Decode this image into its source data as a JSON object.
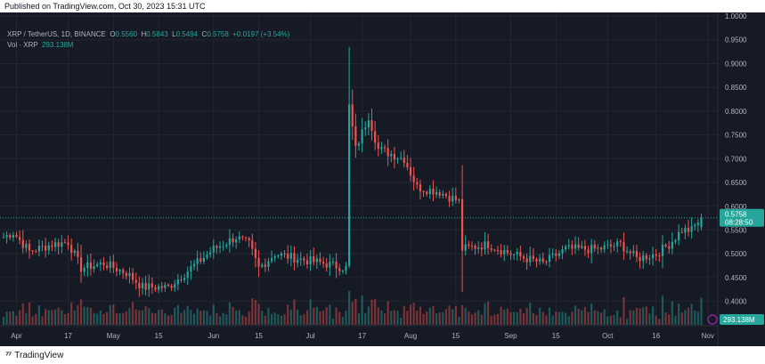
{
  "header": {
    "published": "Published on TradingView.com, Oct 30, 2023 15:31 UTC"
  },
  "legend": {
    "symbol": "XRP / TetherUS, 1D, BINANCE",
    "o_label": "O",
    "o": "0.5560",
    "h_label": "H",
    "h": "0.5843",
    "l_label": "L",
    "l": "0.5494",
    "c_label": "C",
    "c": "0.5758",
    "change": "+0.0197 (+3.54%)"
  },
  "volume_legend": {
    "label": "Vol · XRP",
    "value": "293.138M"
  },
  "price_badge": {
    "price": "0.5758",
    "countdown": "08:28:50"
  },
  "volume_badge": "293.138M",
  "footer": {
    "logo_text": "TradingView"
  },
  "colors": {
    "up": "#26a69a",
    "down": "#ef5350",
    "background": "#161a25",
    "grid": "#232632",
    "text": "#b2b5be"
  },
  "chart_data": {
    "type": "candlestick",
    "y_ticks": [
      "1.0000",
      "0.9500",
      "0.9000",
      "0.8500",
      "0.8000",
      "0.7500",
      "0.7000",
      "0.6500",
      "0.6000",
      "0.5500",
      "0.5000",
      "0.4500",
      "0.4000"
    ],
    "ylim": [
      0.39,
      1.0
    ],
    "x_ticks": [
      {
        "label": "Apr",
        "date": "2023-04-01"
      },
      {
        "label": "17",
        "date": "2023-04-17"
      },
      {
        "label": "May",
        "date": "2023-05-01"
      },
      {
        "label": "15",
        "date": "2023-05-15"
      },
      {
        "label": "Jun",
        "date": "2023-06-01"
      },
      {
        "label": "15",
        "date": "2023-06-15"
      },
      {
        "label": "Jul",
        "date": "2023-07-01"
      },
      {
        "label": "17",
        "date": "2023-07-17"
      },
      {
        "label": "Aug",
        "date": "2023-08-01"
      },
      {
        "label": "15",
        "date": "2023-08-15"
      },
      {
        "label": "Sep",
        "date": "2023-09-01"
      },
      {
        "label": "15",
        "date": "2023-09-15"
      },
      {
        "label": "Oct",
        "date": "2023-10-01"
      },
      {
        "label": "16",
        "date": "2023-10-16"
      },
      {
        "label": "Nov",
        "date": "2023-11-01"
      }
    ],
    "xlim": [
      "2023-03-28",
      "2023-11-03"
    ],
    "close_path": [
      {
        "date": "2023-03-28",
        "close": 0.535
      },
      {
        "date": "2023-03-31",
        "close": 0.545
      },
      {
        "date": "2023-04-05",
        "close": 0.505
      },
      {
        "date": "2023-04-12",
        "close": 0.52
      },
      {
        "date": "2023-04-17",
        "close": 0.525
      },
      {
        "date": "2023-04-21",
        "close": 0.47
      },
      {
        "date": "2023-04-28",
        "close": 0.48
      },
      {
        "date": "2023-05-05",
        "close": 0.46
      },
      {
        "date": "2023-05-10",
        "close": 0.43
      },
      {
        "date": "2023-05-18",
        "close": 0.43
      },
      {
        "date": "2023-05-25",
        "close": 0.47
      },
      {
        "date": "2023-06-01",
        "close": 0.51
      },
      {
        "date": "2023-06-08",
        "close": 0.535
      },
      {
        "date": "2023-06-12",
        "close": 0.52
      },
      {
        "date": "2023-06-15",
        "close": 0.47
      },
      {
        "date": "2023-06-20",
        "close": 0.5
      },
      {
        "date": "2023-06-27",
        "close": 0.49
      },
      {
        "date": "2023-07-05",
        "close": 0.48
      },
      {
        "date": "2023-07-12",
        "close": 0.47
      },
      {
        "date": "2023-07-13",
        "close": 0.81
      },
      {
        "date": "2023-07-15",
        "close": 0.72
      },
      {
        "date": "2023-07-19",
        "close": 0.79
      },
      {
        "date": "2023-07-22",
        "close": 0.72
      },
      {
        "date": "2023-07-30",
        "close": 0.7
      },
      {
        "date": "2023-08-03",
        "close": 0.64
      },
      {
        "date": "2023-08-10",
        "close": 0.63
      },
      {
        "date": "2023-08-16",
        "close": 0.61
      },
      {
        "date": "2023-08-17",
        "close": 0.51
      },
      {
        "date": "2023-08-25",
        "close": 0.52
      },
      {
        "date": "2023-09-01",
        "close": 0.5
      },
      {
        "date": "2023-09-11",
        "close": 0.48
      },
      {
        "date": "2023-09-18",
        "close": 0.51
      },
      {
        "date": "2023-09-28",
        "close": 0.51
      },
      {
        "date": "2023-10-05",
        "close": 0.52
      },
      {
        "date": "2023-10-10",
        "close": 0.49
      },
      {
        "date": "2023-10-16",
        "close": 0.5
      },
      {
        "date": "2023-10-20",
        "close": 0.52
      },
      {
        "date": "2023-10-24",
        "close": 0.55
      },
      {
        "date": "2023-10-27",
        "close": 0.55
      },
      {
        "date": "2023-10-30",
        "close": 0.5758
      }
    ],
    "last_candle": {
      "date": "2023-10-30",
      "open": 0.556,
      "high": 0.5843,
      "low": 0.5494,
      "close": 0.5758
    },
    "last_volume": "293.138M",
    "grid": true,
    "legend_position": "top-left"
  }
}
